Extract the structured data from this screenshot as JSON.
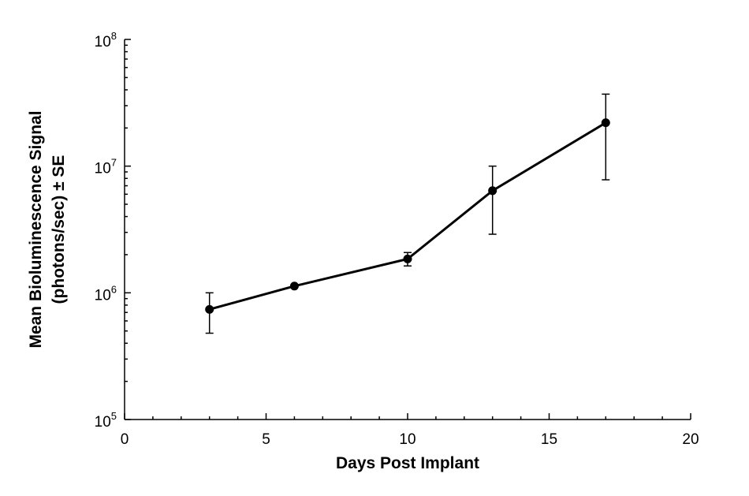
{
  "chart_data": {
    "type": "line",
    "title": "",
    "xlabel": "Days Post Implant",
    "ylabel_lines": [
      "Mean Bioluminescence Signal",
      "(photons/sec) ± SE"
    ],
    "xlim": [
      0,
      20
    ],
    "x_ticks": [
      0,
      5,
      10,
      15,
      20
    ],
    "x_tick_labels": [
      "0",
      "5",
      "10",
      "15",
      "20"
    ],
    "x_minor_step": 1,
    "ylim": [
      100000,
      100000000
    ],
    "y_scale": "log",
    "y_ticks": [
      {
        "value": 100000,
        "base": "10",
        "exp": "5"
      },
      {
        "value": 1000000,
        "base": "10",
        "exp": "6"
      },
      {
        "value": 10000000,
        "base": "10",
        "exp": "7"
      },
      {
        "value": 100000000,
        "base": "10",
        "exp": "8"
      }
    ],
    "grid": false,
    "legend": "none",
    "series": [
      {
        "x": [
          3,
          6,
          10,
          13,
          17
        ],
        "y": [
          740000,
          1130000,
          1850000,
          6400000,
          22000000
        ],
        "err_low": [
          480000,
          1130000,
          1630000,
          2900000,
          7800000
        ],
        "err_high": [
          1000000,
          1130000,
          2080000,
          10000000,
          37000000
        ],
        "color": "#000000"
      }
    ]
  }
}
